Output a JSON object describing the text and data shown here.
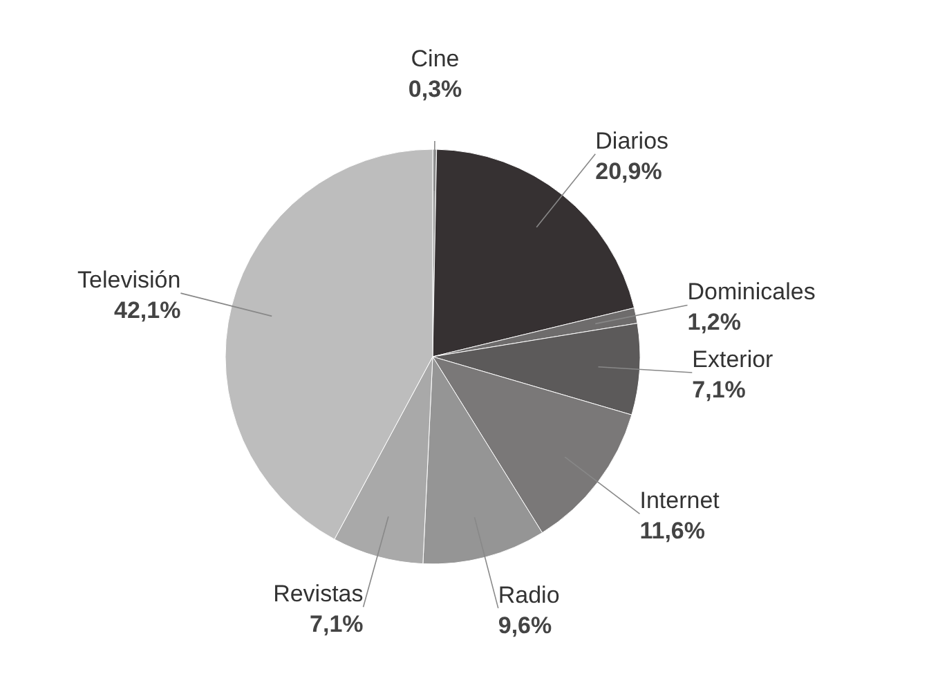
{
  "chart_data": {
    "type": "pie",
    "categories": [
      "Cine",
      "Diarios",
      "Dominicales",
      "Exterior",
      "Internet",
      "Radio",
      "Revistas",
      "Televisión"
    ],
    "values": [
      0.3,
      20.9,
      1.2,
      7.1,
      11.6,
      9.6,
      7.1,
      42.1
    ],
    "value_labels": [
      "0,3%",
      "20,9%",
      "1,2%",
      "7,1%",
      "11,6%",
      "9,6%",
      "7,1%",
      "42,1%"
    ],
    "colors": [
      "#9a9a9a",
      "#363132",
      "#6e6c6c",
      "#5c5a5a",
      "#7a7878",
      "#959595",
      "#a9a9a9",
      "#bdbdbd"
    ]
  }
}
